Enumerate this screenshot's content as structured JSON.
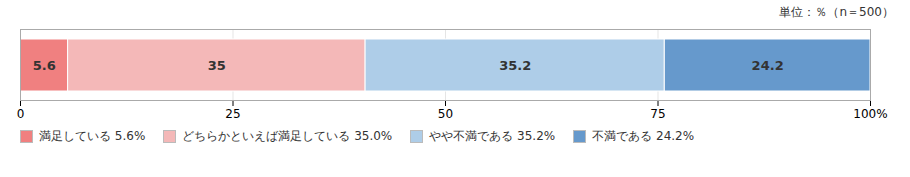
{
  "chart_data": {
    "type": "bar",
    "orientation": "horizontal",
    "stacked": true,
    "subtitle": "単位：％（n＝500）",
    "categories": [
      null
    ],
    "series": [
      {
        "name": "満足している 5.6%",
        "color": "#f08080",
        "values": [
          5.6
        ]
      },
      {
        "name": "どちらかといえば満足している 35.0%",
        "color": "#f4b8b8",
        "values": [
          35.0
        ]
      },
      {
        "name": "やや不満である 35.2%",
        "color": "#aecde8",
        "values": [
          35.2
        ]
      },
      {
        "name": "不満である 24.2%",
        "color": "#6699cc",
        "values": [
          24.2
        ]
      }
    ],
    "xlim": [
      0,
      100
    ],
    "xticks": [
      0,
      25,
      50,
      75,
      {
        "value": 100,
        "label": "100%"
      }
    ],
    "grid": true,
    "data_labels": true,
    "legend": "bottom",
    "tick_labels": "x"
  }
}
